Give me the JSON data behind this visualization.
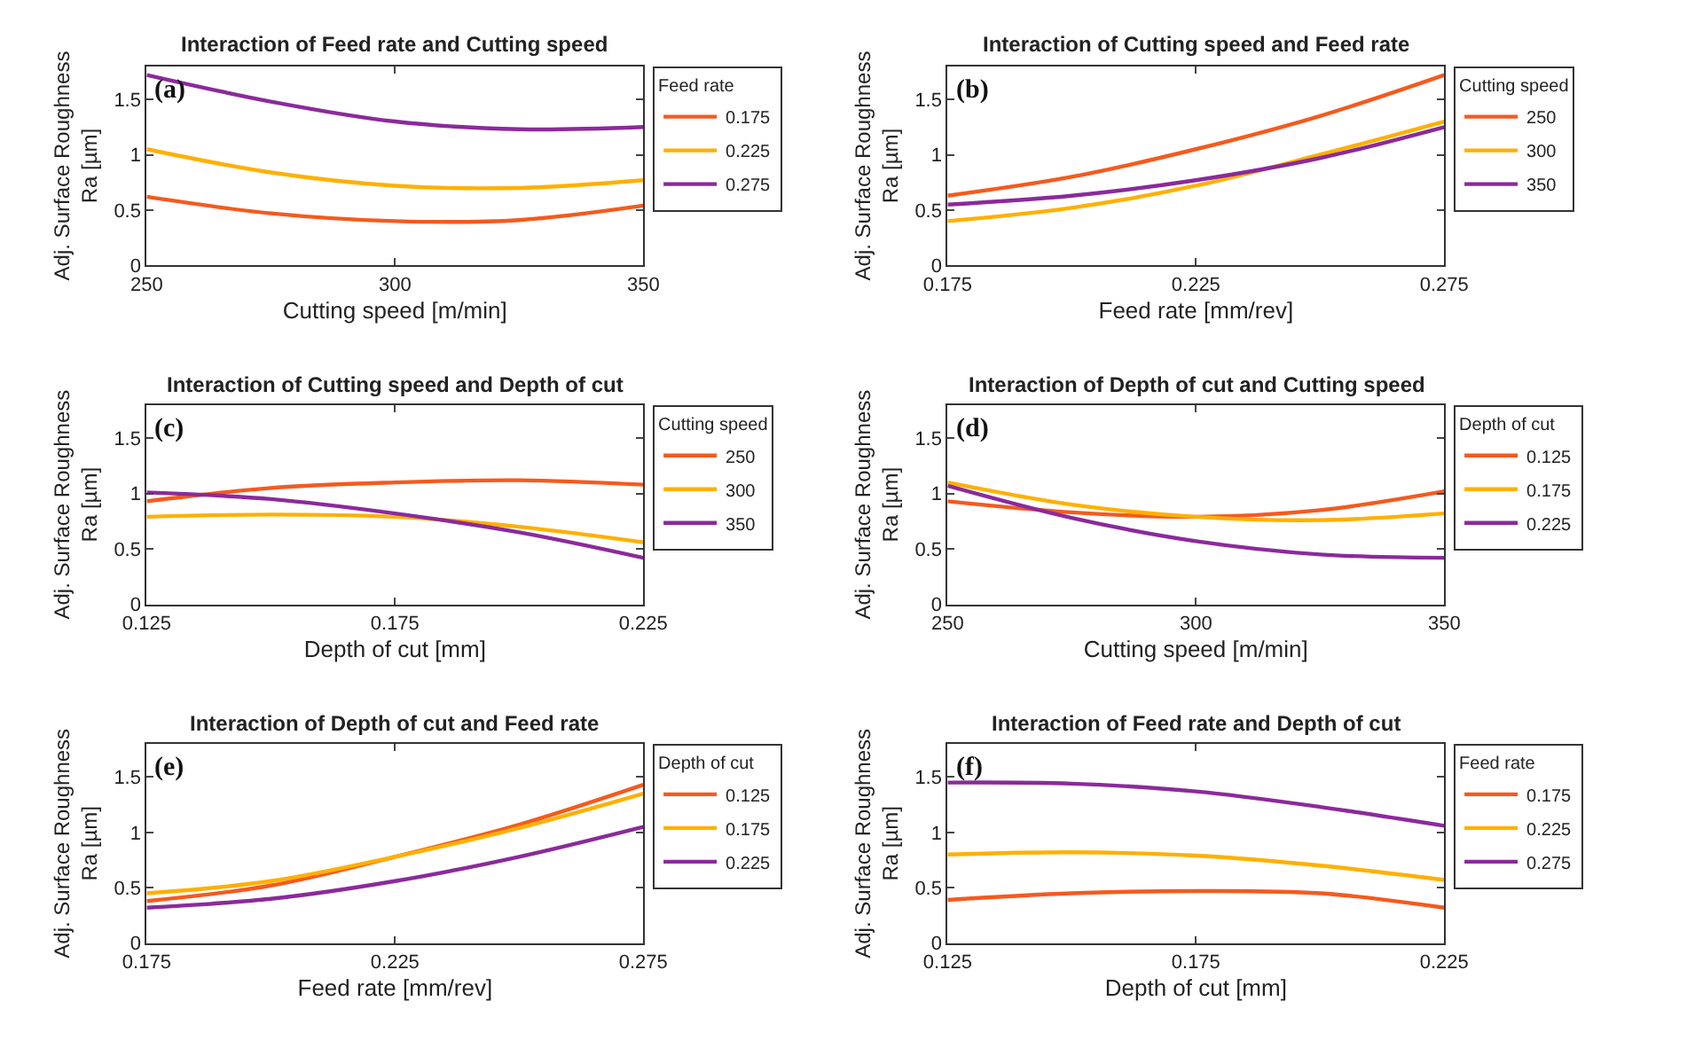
{
  "chart_data": [
    {
      "type": "line",
      "title": "Interaction of Feed rate and Cutting speed",
      "xlabel": "Cutting speed [m/min]",
      "ylabel": "Adj. Surface Roughness\nRa [µm]",
      "legend_title": "Feed rate",
      "annotations": [
        "(a)"
      ],
      "x": [
        250,
        275,
        300,
        325,
        350
      ],
      "xlim": [
        250,
        350
      ],
      "xticks": [
        250,
        300,
        350
      ],
      "ylim": [
        0,
        1.8
      ],
      "yticks": [
        0,
        0.5,
        1,
        1.5
      ],
      "legend": "right",
      "marker": "none",
      "line_style": "solid",
      "series": [
        {
          "name": "0.175",
          "color": "#f55a1e",
          "values": [
            0.62,
            0.47,
            0.4,
            0.41,
            0.54
          ]
        },
        {
          "name": "0.225",
          "color": "#ffb000",
          "values": [
            1.05,
            0.84,
            0.72,
            0.7,
            0.77
          ]
        },
        {
          "name": "0.275",
          "color": "#8b2a9b",
          "values": [
            1.72,
            1.48,
            1.3,
            1.23,
            1.25
          ]
        }
      ]
    },
    {
      "type": "line",
      "title": "Interaction of Cutting speed and Feed rate",
      "xlabel": "Feed rate [mm/rev]",
      "ylabel": "Adj. Surface Roughness\nRa [µm]",
      "legend_title": "Cutting speed",
      "annotations": [
        "(b)"
      ],
      "x": [
        0.175,
        0.2,
        0.225,
        0.25,
        0.275
      ],
      "xlim": [
        0.175,
        0.275
      ],
      "xticks": [
        0.175,
        0.225,
        0.275
      ],
      "ylim": [
        0,
        1.8
      ],
      "yticks": [
        0,
        0.5,
        1,
        1.5
      ],
      "legend": "right",
      "marker": "none",
      "line_style": "solid",
      "series": [
        {
          "name": "250",
          "color": "#f55a1e",
          "values": [
            0.63,
            0.8,
            1.05,
            1.35,
            1.72
          ]
        },
        {
          "name": "300",
          "color": "#ffb000",
          "values": [
            0.4,
            0.52,
            0.72,
            1.0,
            1.3
          ]
        },
        {
          "name": "350",
          "color": "#8b2a9b",
          "values": [
            0.55,
            0.63,
            0.77,
            0.97,
            1.25
          ]
        }
      ]
    },
    {
      "type": "line",
      "title": "Interaction of Cutting speed and Depth of cut",
      "xlabel": "Depth of cut [mm]",
      "ylabel": "Adj. Surface Roughness\nRa [µm]",
      "legend_title": "Cutting speed",
      "annotations": [
        "(c)"
      ],
      "x": [
        0.125,
        0.15,
        0.175,
        0.2,
        0.225
      ],
      "xlim": [
        0.125,
        0.225
      ],
      "xticks": [
        0.125,
        0.175,
        0.225
      ],
      "ylim": [
        0,
        1.8
      ],
      "yticks": [
        0,
        0.5,
        1,
        1.5
      ],
      "legend": "right",
      "marker": "none",
      "line_style": "solid",
      "series": [
        {
          "name": "250",
          "color": "#f55a1e",
          "values": [
            0.93,
            1.05,
            1.1,
            1.12,
            1.08
          ]
        },
        {
          "name": "300",
          "color": "#ffb000",
          "values": [
            0.79,
            0.81,
            0.79,
            0.7,
            0.56
          ]
        },
        {
          "name": "350",
          "color": "#8b2a9b",
          "values": [
            1.01,
            0.95,
            0.82,
            0.65,
            0.42
          ]
        }
      ]
    },
    {
      "type": "line",
      "title": "Interaction of Depth of cut and Cutting speed",
      "xlabel": "Cutting speed [m/min]",
      "ylabel": "Adj. Surface Roughness\nRa [µm]",
      "legend_title": "Depth of cut",
      "annotations": [
        "(d)"
      ],
      "x": [
        250,
        275,
        300,
        325,
        350
      ],
      "xlim": [
        250,
        350
      ],
      "xticks": [
        250,
        300,
        350
      ],
      "ylim": [
        0,
        1.8
      ],
      "yticks": [
        0,
        0.5,
        1,
        1.5
      ],
      "legend": "right",
      "marker": "none",
      "line_style": "solid",
      "series": [
        {
          "name": "0.125",
          "color": "#f55a1e",
          "values": [
            0.93,
            0.83,
            0.79,
            0.85,
            1.02
          ]
        },
        {
          "name": "0.175",
          "color": "#ffb000",
          "values": [
            1.1,
            0.9,
            0.79,
            0.76,
            0.82
          ]
        },
        {
          "name": "0.225",
          "color": "#8b2a9b",
          "values": [
            1.07,
            0.78,
            0.57,
            0.45,
            0.42
          ]
        }
      ]
    },
    {
      "type": "line",
      "title": "Interaction of Depth of cut and Feed rate",
      "xlabel": "Feed rate [mm/rev]",
      "ylabel": "Adj. Surface Roughness\nRa [µm]",
      "legend_title": "Depth of cut",
      "annotations": [
        "(e)"
      ],
      "x": [
        0.175,
        0.2,
        0.225,
        0.25,
        0.275
      ],
      "xlim": [
        0.175,
        0.275
      ],
      "xticks": [
        0.175,
        0.225,
        0.275
      ],
      "ylim": [
        0,
        1.8
      ],
      "yticks": [
        0,
        0.5,
        1,
        1.5
      ],
      "legend": "right",
      "marker": "none",
      "line_style": "solid",
      "series": [
        {
          "name": "0.125",
          "color": "#f55a1e",
          "values": [
            0.38,
            0.52,
            0.78,
            1.07,
            1.43
          ]
        },
        {
          "name": "0.175",
          "color": "#ffb000",
          "values": [
            0.45,
            0.56,
            0.78,
            1.04,
            1.35
          ]
        },
        {
          "name": "0.225",
          "color": "#8b2a9b",
          "values": [
            0.32,
            0.4,
            0.56,
            0.78,
            1.05
          ]
        }
      ]
    },
    {
      "type": "line",
      "title": "Interaction of Feed rate and Depth of cut",
      "xlabel": "Depth of cut [mm]",
      "ylabel": "Adj. Surface Roughness\nRa [µm]",
      "legend_title": "Feed rate",
      "annotations": [
        "(f)"
      ],
      "x": [
        0.125,
        0.15,
        0.175,
        0.2,
        0.225
      ],
      "xlim": [
        0.125,
        0.225
      ],
      "xticks": [
        0.125,
        0.175,
        0.225
      ],
      "ylim": [
        0,
        1.8
      ],
      "yticks": [
        0,
        0.5,
        1,
        1.5
      ],
      "legend": "right",
      "marker": "none",
      "line_style": "solid",
      "series": [
        {
          "name": "0.175",
          "color": "#f55a1e",
          "values": [
            0.39,
            0.45,
            0.47,
            0.45,
            0.32
          ]
        },
        {
          "name": "0.225",
          "color": "#ffb000",
          "values": [
            0.8,
            0.82,
            0.79,
            0.7,
            0.57
          ]
        },
        {
          "name": "0.275",
          "color": "#8b2a9b",
          "values": [
            1.45,
            1.44,
            1.37,
            1.23,
            1.06
          ]
        }
      ]
    }
  ]
}
